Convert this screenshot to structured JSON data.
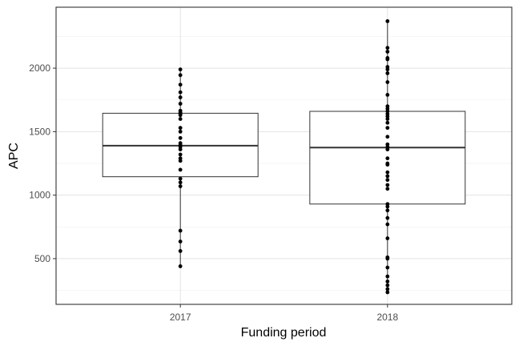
{
  "chart_data": {
    "type": "boxplot",
    "title": "",
    "xlabel": "Funding period",
    "ylabel": "APC",
    "categories": [
      "2017",
      "2018"
    ],
    "ylim": [
      140,
      2480
    ],
    "yticks": [
      500,
      1000,
      1500,
      2000
    ],
    "grid": true,
    "boxes": [
      {
        "category": "2017",
        "whisker_low": 440,
        "q1": 1145,
        "median": 1390,
        "q3": 1645,
        "whisker_high": 1990
      },
      {
        "category": "2018",
        "whisker_low": 235,
        "q1": 930,
        "median": 1375,
        "q3": 1660,
        "whisker_high": 2370
      }
    ],
    "points": [
      {
        "category": "2017",
        "values": [
          1990,
          1945,
          1870,
          1810,
          1770,
          1720,
          1665,
          1650,
          1640,
          1630,
          1600,
          1530,
          1500,
          1450,
          1410,
          1395,
          1380,
          1360,
          1320,
          1290,
          1270,
          1200,
          1130,
          1100,
          1070,
          720,
          635,
          560,
          440
        ]
      },
      {
        "category": "2018",
        "values": [
          2370,
          2160,
          2130,
          2080,
          2070,
          2010,
          1990,
          1960,
          1890,
          1790,
          1700,
          1680,
          1660,
          1640,
          1620,
          1600,
          1570,
          1530,
          1460,
          1400,
          1380,
          1360,
          1290,
          1250,
          1240,
          1180,
          1150,
          1120,
          1080,
          1050,
          930,
          910,
          880,
          820,
          770,
          660,
          510,
          500,
          430,
          360,
          320,
          290,
          260,
          235
        ]
      }
    ]
  }
}
